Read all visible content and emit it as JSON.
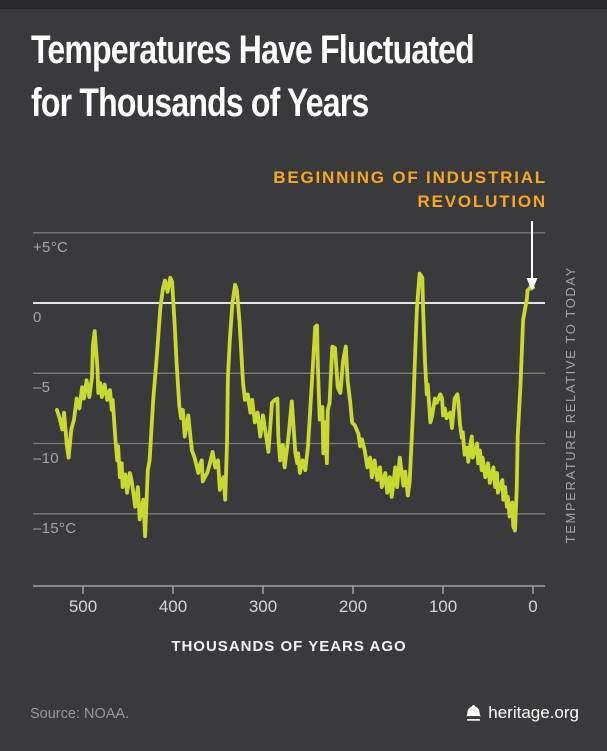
{
  "title": {
    "line1": "Temperatures Have Fluctuated",
    "line2": "for Thousands of Years"
  },
  "annotation": {
    "line1": "BEGINNING OF INDUSTRIAL",
    "line2": "REVOLUTION"
  },
  "y_axis": {
    "labels": [
      "+5°C",
      "0",
      "–5",
      "–10",
      "–15°C"
    ],
    "values": [
      5,
      0,
      -5,
      -10,
      -15
    ]
  },
  "x_axis": {
    "labels": [
      "500",
      "400",
      "300",
      "200",
      "100",
      "0"
    ],
    "values": [
      500,
      400,
      300,
      200,
      100,
      0
    ],
    "title": "THOUSANDS OF YEARS AGO"
  },
  "right_axis_label": "TEMPERATURE RELATIVE TO TODAY",
  "footer": {
    "source": "Source: NOAA.",
    "brand": "heritage.org",
    "brand_icon": "liberty-bell-icon"
  },
  "colors": {
    "background": "#3a3a3c",
    "line": "#c8da2f",
    "accent_orange": "#f8a81e",
    "gridline": "#7c7c80",
    "zero_line": "#e2e2e4",
    "axis": "#a2a2a5",
    "text_gray": "#a3a5a8",
    "text_white": "#ffffff"
  },
  "chart_data": {
    "type": "line",
    "title": "Temperatures Have Fluctuated for Thousands of Years",
    "xlabel": "THOUSANDS OF YEARS AGO",
    "ylabel": "TEMPERATURE RELATIVE TO TODAY",
    "xlim": [
      555,
      0
    ],
    "ylim": [
      -20,
      7
    ],
    "x_ticks": [
      500,
      400,
      300,
      200,
      100,
      0
    ],
    "y_ticks": [
      5,
      0,
      -5,
      -10,
      -15
    ],
    "grid": "horizontal-only",
    "annotation_arrow_x_kyr": 1,
    "series_name": "Temperature relative to today (°C)",
    "points": [
      [
        529,
        -7.6
      ],
      [
        526,
        -8.2
      ],
      [
        523,
        -9.0
      ],
      [
        521,
        -7.8
      ],
      [
        518,
        -10.1
      ],
      [
        516,
        -11.0
      ],
      [
        513,
        -9.0
      ],
      [
        510,
        -8.3
      ],
      [
        507,
        -6.8
      ],
      [
        504,
        -7.5
      ],
      [
        501,
        -6.0
      ],
      [
        499,
        -6.8
      ],
      [
        496,
        -5.5
      ],
      [
        493,
        -6.7
      ],
      [
        490,
        -5.3
      ],
      [
        489,
        -3.0
      ],
      [
        487,
        -2.0
      ],
      [
        484,
        -4.6
      ],
      [
        483,
        -6.4
      ],
      [
        481,
        -5.7
      ],
      [
        479,
        -6.7
      ],
      [
        476,
        -5.8
      ],
      [
        473,
        -6.9
      ],
      [
        470,
        -6.2
      ],
      [
        468,
        -7.6
      ],
      [
        467,
        -6.9
      ],
      [
        464,
        -9.7
      ],
      [
        462,
        -11.2
      ],
      [
        461,
        -10.2
      ],
      [
        459,
        -12.4
      ],
      [
        457,
        -11.4
      ],
      [
        456,
        -13.1
      ],
      [
        453,
        -12.2
      ],
      [
        451,
        -13.5
      ],
      [
        448,
        -12.1
      ],
      [
        446,
        -12.6
      ],
      [
        442,
        -14.5
      ],
      [
        439,
        -13.1
      ],
      [
        437,
        -15.4
      ],
      [
        433,
        -14.0
      ],
      [
        431,
        -16.6
      ],
      [
        428,
        -11.9
      ],
      [
        426,
        -11.2
      ],
      [
        422,
        -6.9
      ],
      [
        418,
        -3.8
      ],
      [
        414,
        -0.3
      ],
      [
        411,
        1.1
      ],
      [
        409,
        1.6
      ],
      [
        406,
        0.8
      ],
      [
        403,
        1.8
      ],
      [
        401,
        1.5
      ],
      [
        398,
        -1.7
      ],
      [
        396,
        -4.3
      ],
      [
        393,
        -7.3
      ],
      [
        391,
        -8.2
      ],
      [
        389,
        -7.6
      ],
      [
        387,
        -9.5
      ],
      [
        383,
        -8.0
      ],
      [
        381,
        -9.3
      ],
      [
        379,
        -10.5
      ],
      [
        376,
        -11.0
      ],
      [
        372,
        -12.1
      ],
      [
        370,
        -11.5
      ],
      [
        368,
        -11.2
      ],
      [
        367,
        -12.7
      ],
      [
        362,
        -12.1
      ],
      [
        359,
        -11.4
      ],
      [
        356,
        -10.6
      ],
      [
        353,
        -11.7
      ],
      [
        350,
        -11.2
      ],
      [
        348,
        -13.3
      ],
      [
        344,
        -12.4
      ],
      [
        342,
        -14.0
      ],
      [
        340,
        -10.0
      ],
      [
        339,
        -5.3
      ],
      [
        337,
        -2.8
      ],
      [
        334,
        0.0
      ],
      [
        331,
        1.3
      ],
      [
        329,
        0.9
      ],
      [
        326,
        -1.4
      ],
      [
        323,
        -4.8
      ],
      [
        322,
        -5.8
      ],
      [
        320,
        -6.9
      ],
      [
        317,
        -6.5
      ],
      [
        314,
        -7.8
      ],
      [
        312,
        -6.9
      ],
      [
        309,
        -8.5
      ],
      [
        306,
        -7.8
      ],
      [
        303,
        -9.5
      ],
      [
        300,
        -8.0
      ],
      [
        296,
        -9.7
      ],
      [
        294,
        -10.6
      ],
      [
        290,
        -7.1
      ],
      [
        287,
        -6.9
      ],
      [
        284,
        -6.8
      ],
      [
        283,
        -9.5
      ],
      [
        281,
        -11.2
      ],
      [
        278,
        -10.1
      ],
      [
        276,
        -11.7
      ],
      [
        272,
        -9.7
      ],
      [
        268,
        -7.0
      ],
      [
        264,
        -10.7
      ],
      [
        262,
        -11.4
      ],
      [
        261,
        -10.7
      ],
      [
        259,
        -12.1
      ],
      [
        256,
        -11.2
      ],
      [
        253,
        -11.9
      ],
      [
        250,
        -10.2
      ],
      [
        246,
        -6.0
      ],
      [
        242,
        -1.7
      ],
      [
        240,
        -1.6
      ],
      [
        239,
        -4.6
      ],
      [
        237,
        -8.3
      ],
      [
        234,
        -7.4
      ],
      [
        233,
        -10.7
      ],
      [
        231,
        -8.5
      ],
      [
        229,
        -11.4
      ],
      [
        228,
        -7.6
      ],
      [
        226,
        -7.1
      ],
      [
        223,
        -3.1
      ],
      [
        220,
        -3.2
      ],
      [
        217,
        -6.0
      ],
      [
        214,
        -6.4
      ],
      [
        211,
        -4.1
      ],
      [
        208,
        -3.1
      ],
      [
        206,
        -5.5
      ],
      [
        203,
        -7.1
      ],
      [
        201,
        -8.5
      ],
      [
        198,
        -8.7
      ],
      [
        194,
        -9.3
      ],
      [
        192,
        -10.2
      ],
      [
        190,
        -9.7
      ],
      [
        187,
        -10.5
      ],
      [
        184,
        -11.7
      ],
      [
        181,
        -11.0
      ],
      [
        179,
        -12.4
      ],
      [
        176,
        -11.2
      ],
      [
        173,
        -12.6
      ],
      [
        170,
        -11.7
      ],
      [
        168,
        -13.1
      ],
      [
        164,
        -12.1
      ],
      [
        162,
        -13.5
      ],
      [
        159,
        -12.4
      ],
      [
        157,
        -13.8
      ],
      [
        153,
        -11.7
      ],
      [
        151,
        -13.1
      ],
      [
        148,
        -11.0
      ],
      [
        144,
        -13.0
      ],
      [
        142,
        -12.0
      ],
      [
        139,
        -13.7
      ],
      [
        137,
        -12.7
      ],
      [
        133,
        -7.3
      ],
      [
        131,
        -3.7
      ],
      [
        129,
        -0.4
      ],
      [
        126,
        2.1
      ],
      [
        123,
        1.8
      ],
      [
        122,
        -0.6
      ],
      [
        120,
        -4.2
      ],
      [
        118,
        -6.5
      ],
      [
        117,
        -5.8
      ],
      [
        114,
        -8.5
      ],
      [
        112,
        -8.0
      ],
      [
        109,
        -6.8
      ],
      [
        107,
        -7.1
      ],
      [
        103,
        -6.5
      ],
      [
        101,
        -6.8
      ],
      [
        100,
        -8.0
      ],
      [
        98,
        -7.5
      ],
      [
        96,
        -8.2
      ],
      [
        92,
        -7.8
      ],
      [
        90,
        -8.9
      ],
      [
        87,
        -6.8
      ],
      [
        84,
        -6.5
      ],
      [
        83,
        -7.0
      ],
      [
        81,
        -8.7
      ],
      [
        79,
        -9.6
      ],
      [
        78,
        -9.2
      ],
      [
        76,
        -10.8
      ],
      [
        73,
        -10.3
      ],
      [
        72,
        -11.3
      ],
      [
        70,
        -10.2
      ],
      [
        68,
        -9.5
      ],
      [
        67,
        -11.0
      ],
      [
        62,
        -10.0
      ],
      [
        61,
        -11.4
      ],
      [
        59,
        -10.5
      ],
      [
        57,
        -11.9
      ],
      [
        56,
        -11.0
      ],
      [
        53,
        -12.4
      ],
      [
        50,
        -11.4
      ],
      [
        48,
        -12.8
      ],
      [
        44,
        -11.7
      ],
      [
        42,
        -13.1
      ],
      [
        40,
        -12.1
      ],
      [
        39,
        -13.5
      ],
      [
        34,
        -12.6
      ],
      [
        33,
        -14.0
      ],
      [
        31,
        -13.1
      ],
      [
        29,
        -14.5
      ],
      [
        28,
        -13.8
      ],
      [
        26,
        -15.2
      ],
      [
        23,
        -14.2
      ],
      [
        22,
        -15.9
      ],
      [
        20,
        -16.2
      ],
      [
        18,
        -13.1
      ],
      [
        17,
        -9.5
      ],
      [
        14,
        -6.0
      ],
      [
        12,
        -2.8
      ],
      [
        11,
        -1.2
      ],
      [
        9,
        -0.5
      ],
      [
        7,
        0.2
      ],
      [
        6,
        0.9
      ],
      [
        3,
        1.1
      ],
      [
        2,
        1.4
      ],
      [
        0,
        1.1
      ]
    ]
  }
}
